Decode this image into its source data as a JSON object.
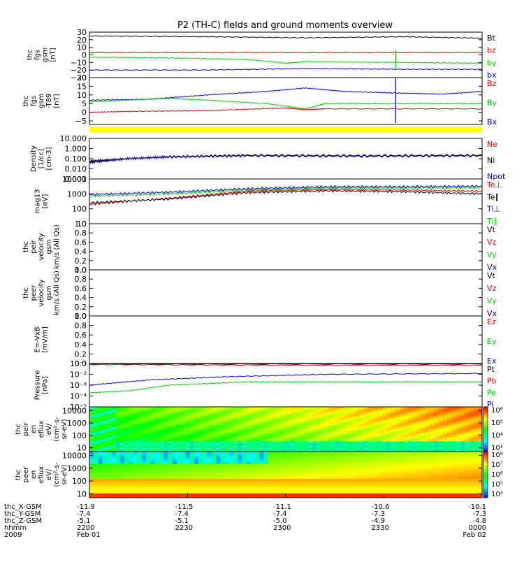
{
  "title": "P2 (TH-C) fields and ground moments overview",
  "chart_data": {
    "type": "line",
    "title": "P2 (TH-C) fields and ground moments overview",
    "xlim": [
      "2009-02-01 22:00",
      "2009-02-02 00:00"
    ],
    "x_ticks": [
      {
        "time": "2200",
        "xgsm": "-11.9",
        "ygsm": "-7.4",
        "zgsm": "-5.1",
        "date": "Feb 01"
      },
      {
        "time": "2230",
        "xgsm": "-11.5",
        "ygsm": "-7.4",
        "zgsm": "-5.1",
        "date": ""
      },
      {
        "time": "2300",
        "xgsm": "-11.1",
        "ygsm": "-7.4",
        "zgsm": "-5.0",
        "date": ""
      },
      {
        "time": "2330",
        "xgsm": "-10.6",
        "ygsm": "-7.3",
        "zgsm": "-4.9",
        "date": ""
      },
      {
        "time": "0000",
        "xgsm": "-10.1",
        "ygsm": "-7.3",
        "zgsm": "-4.8",
        "date": "Feb 02"
      }
    ],
    "row_labels": [
      "thc_X-GSM",
      "thc_Y-GSM",
      "thc_Z-GSM",
      "hhmm",
      "2009"
    ],
    "panels": [
      {
        "key": "fgs",
        "ylabel": [
          "thc",
          "fgs",
          "gsm",
          "[nT]"
        ],
        "ylim": [
          -30,
          30
        ],
        "ticks": [
          "30",
          "20",
          "10",
          "0",
          "−10",
          "−20",
          "−30"
        ],
        "tick_values": [
          30,
          20,
          10,
          0,
          -10,
          -20,
          -30
        ],
        "legend": [
          {
            "label": "Bt",
            "color": "#000000"
          },
          {
            "label": "bz",
            "color": "#dd0000"
          },
          {
            "label": "by",
            "color": "#00cc00"
          },
          {
            "label": "bx",
            "color": "#0000cc"
          }
        ],
        "series": [
          {
            "name": "Bt",
            "color": "#000000",
            "kind": "line",
            "values": [
              [
                0,
                25
              ],
              [
                0.3,
                24
              ],
              [
                0.55,
                22.5
              ],
              [
                0.8,
                24
              ],
              [
                1,
                22
              ]
            ]
          },
          {
            "name": "bz",
            "color": "#dd0000",
            "kind": "line",
            "values": [
              [
                0,
                3
              ],
              [
                0.5,
                3
              ],
              [
                1,
                3
              ]
            ]
          },
          {
            "name": "by",
            "color": "#00cc00",
            "kind": "line",
            "values": [
              [
                0,
                -3
              ],
              [
                0.2,
                -4
              ],
              [
                0.4,
                -6
              ],
              [
                0.5,
                -11
              ],
              [
                0.55,
                -9
              ],
              [
                0.8,
                -10
              ],
              [
                1,
                -11
              ]
            ]
          },
          {
            "name": "bx",
            "color": "#0000cc",
            "kind": "line",
            "values": [
              [
                0,
                -20
              ],
              [
                0.3,
                -20
              ],
              [
                0.55,
                -18
              ],
              [
                0.8,
                -19
              ],
              [
                1,
                -19
              ]
            ]
          }
        ]
      },
      {
        "key": "t89",
        "ylabel": [
          "thc",
          "fgs",
          "gsm",
          "-T89",
          "[nT]"
        ],
        "ylim": [
          -7,
          20
        ],
        "ticks": [
          "20",
          "15",
          "10",
          "5",
          "0",
          "−5"
        ],
        "tick_values": [
          20,
          15,
          10,
          5,
          0,
          -5
        ],
        "legend": [
          {
            "label": "Bz",
            "color": "#dd0000"
          },
          {
            "label": "By",
            "color": "#00cc00"
          },
          {
            "label": "Bx",
            "color": "#0000cc"
          }
        ],
        "series": [
          {
            "name": "Bx",
            "color": "#0000cc",
            "kind": "line",
            "values": [
              [
                0,
                7
              ],
              [
                0.15,
                7.5
              ],
              [
                0.3,
                10
              ],
              [
                0.45,
                12
              ],
              [
                0.55,
                14
              ],
              [
                0.65,
                12
              ],
              [
                0.8,
                11
              ],
              [
                0.9,
                10.5
              ],
              [
                1,
                12
              ]
            ]
          },
          {
            "name": "By",
            "color": "#00cc00",
            "kind": "line",
            "values": [
              [
                0,
                6
              ],
              [
                0.1,
                7
              ],
              [
                0.2,
                8
              ],
              [
                0.3,
                7
              ],
              [
                0.45,
                5
              ],
              [
                0.55,
                2
              ],
              [
                0.6,
                5
              ],
              [
                0.8,
                5
              ],
              [
                1,
                5
              ]
            ]
          },
          {
            "name": "Bz",
            "color": "#dd0000",
            "kind": "line",
            "values": [
              [
                0,
                0
              ],
              [
                0.1,
                0.5
              ],
              [
                0.3,
                1
              ],
              [
                0.5,
                2.5
              ],
              [
                0.55,
                1.5
              ],
              [
                0.6,
                2
              ],
              [
                1,
                2
              ]
            ]
          }
        ]
      },
      {
        "key": "density",
        "ylabel": [
          "Density",
          "[1/cc]",
          "[cm-3]"
        ],
        "log": true,
        "ylim": [
          0.001,
          10
        ],
        "ticks": [
          "10.000",
          "1.000",
          "0.100",
          "0.010",
          "0.001"
        ],
        "tick_values": [
          10,
          1,
          0.1,
          0.01,
          0.001
        ],
        "legend": [
          {
            "label": "Ne",
            "color": "#dd0000"
          },
          {
            "label": "Ni",
            "color": "#000000"
          },
          {
            "label": "Npot",
            "color": "#0000cc"
          }
        ],
        "series": [
          {
            "name": "Ne",
            "color": "#dd0000",
            "kind": "line",
            "values": [
              [
                0,
                0.05
              ],
              [
                0.1,
                0.1
              ],
              [
                0.2,
                0.15
              ],
              [
                0.4,
                0.2
              ],
              [
                0.7,
                0.18
              ],
              [
                1,
                0.2
              ]
            ]
          },
          {
            "name": "Ni",
            "color": "#000000",
            "kind": "line",
            "values": [
              [
                0,
                0.06
              ],
              [
                0.1,
                0.1
              ],
              [
                0.2,
                0.16
              ],
              [
                0.4,
                0.22
              ],
              [
                0.7,
                0.2
              ],
              [
                1,
                0.22
              ]
            ]
          },
          {
            "name": "Npot",
            "color": "#0000cc",
            "kind": "line",
            "values": [
              [
                0,
                0.04
              ],
              [
                0.1,
                0.1
              ],
              [
                0.2,
                0.14
              ],
              [
                0.4,
                0.19
              ],
              [
                0.7,
                0.17
              ],
              [
                1,
                0.19
              ]
            ]
          }
        ]
      },
      {
        "key": "mag13",
        "ylabel": [
          "mag13",
          "[eV]"
        ],
        "log": true,
        "ylim": [
          10,
          10000
        ],
        "ticks": [
          "10000",
          "1000",
          "100",
          "10"
        ],
        "tick_values": [
          10000,
          1000,
          100,
          10
        ],
        "legend": [
          {
            "label": "Te⊥",
            "color": "#dd0000"
          },
          {
            "label": "Te∥",
            "color": "#000000"
          },
          {
            "label": "Ti⊥",
            "color": "#0000cc"
          },
          {
            "label": "Ti∥",
            "color": "#00cc00"
          }
        ],
        "series": [
          {
            "name": "Ti⊥",
            "color": "#0000cc",
            "kind": "line",
            "values": [
              [
                0,
                900
              ],
              [
                0.2,
                1300
              ],
              [
                0.4,
                2200
              ],
              [
                0.6,
                3000
              ],
              [
                0.8,
                3000
              ],
              [
                1,
                3300
              ]
            ]
          },
          {
            "name": "Ti∥",
            "color": "#00cc00",
            "kind": "line",
            "values": [
              [
                0,
                700
              ],
              [
                0.2,
                1000
              ],
              [
                0.4,
                1800
              ],
              [
                0.6,
                2500
              ],
              [
                0.8,
                2500
              ],
              [
                1,
                2600
              ]
            ]
          },
          {
            "name": "Te⊥",
            "color": "#dd0000",
            "kind": "line",
            "values": [
              [
                0,
                200
              ],
              [
                0.2,
                500
              ],
              [
                0.4,
                1500
              ],
              [
                0.6,
                2000
              ],
              [
                0.8,
                1800
              ],
              [
                1,
                1500
              ]
            ]
          },
          {
            "name": "Te∥",
            "color": "#000000",
            "kind": "line",
            "values": [
              [
                0,
                250
              ],
              [
                0.2,
                450
              ],
              [
                0.4,
                1200
              ],
              [
                0.6,
                1600
              ],
              [
                0.8,
                1400
              ],
              [
                1,
                1000
              ]
            ]
          }
        ]
      },
      {
        "key": "peir",
        "ylabel": [
          "thc",
          "peir",
          "velocity",
          "gsm",
          "km/s (All Qs)"
        ],
        "ylim": [
          0,
          1
        ],
        "ticks": [
          "1.0",
          "0.8",
          "0.6",
          "0.4",
          "0.2",
          "0.0"
        ],
        "tick_values": [
          1,
          0.8,
          0.6,
          0.4,
          0.2,
          0
        ],
        "legend": [
          {
            "label": "Vt",
            "color": "#000000"
          },
          {
            "label": "Vz",
            "color": "#dd0000"
          },
          {
            "label": "Vy",
            "color": "#00cc00"
          },
          {
            "label": "Vx",
            "color": "#0000cc"
          }
        ],
        "series": []
      },
      {
        "key": "peer",
        "ylabel": [
          "thc",
          "peer",
          "velocity",
          "gsm",
          "km/s (All Qs)"
        ],
        "ylim": [
          0,
          1
        ],
        "ticks": [
          "1.0",
          "0.8",
          "0.6",
          "0.4",
          "0.2",
          "0.0"
        ],
        "tick_values": [
          1,
          0.8,
          0.6,
          0.4,
          0.2,
          0
        ],
        "legend": [
          {
            "label": "Vt",
            "color": "#000000"
          },
          {
            "label": "Vz",
            "color": "#dd0000"
          },
          {
            "label": "Vy",
            "color": "#00cc00"
          },
          {
            "label": "Vx",
            "color": "#0000cc"
          }
        ],
        "series": []
      },
      {
        "key": "efield",
        "ylabel": [
          "E=-VxB",
          "[mV/m]"
        ],
        "ylim": [
          0,
          1
        ],
        "ticks": [
          "1.0",
          "0.8",
          "0.6",
          "0.4",
          "0.2",
          "0.0"
        ],
        "tick_values": [
          1,
          0.8,
          0.6,
          0.4,
          0.2,
          0
        ],
        "legend": [
          {
            "label": "Ez",
            "color": "#dd0000"
          },
          {
            "label": "Ey",
            "color": "#00cc00"
          },
          {
            "label": "Ex",
            "color": "#0000cc"
          }
        ],
        "series": []
      },
      {
        "key": "pressure",
        "ylabel": [
          "Pressure",
          "[nPa]"
        ],
        "log": true,
        "ylim": [
          1e-05,
          0.1
        ],
        "ticks": [
          "10⁻¹",
          "10⁻²",
          "10⁻³",
          "10⁻⁴",
          "10⁻⁵"
        ],
        "tick_values": [
          0.1,
          0.01,
          0.001,
          0.0001,
          1e-05
        ],
        "legend": [
          {
            "label": "Pt",
            "color": "#000000"
          },
          {
            "label": "Pb",
            "color": "#dd0000"
          },
          {
            "label": "Pe",
            "color": "#00cc00"
          },
          {
            "label": "Pi",
            "color": "#0000cc"
          }
        ],
        "series": [
          {
            "name": "Pt",
            "color": "#000000",
            "kind": "line",
            "values": [
              [
                0,
                0.09
              ],
              [
                1,
                0.09
              ]
            ]
          },
          {
            "name": "Pb",
            "color": "#dd0000",
            "kind": "line",
            "values": [
              [
                0,
                0.08
              ],
              [
                0.5,
                0.07
              ],
              [
                1,
                0.07
              ]
            ]
          },
          {
            "name": "Pi",
            "color": "#0000cc",
            "kind": "line",
            "values": [
              [
                0,
                0.001
              ],
              [
                0.15,
                0.003
              ],
              [
                0.35,
                0.006
              ],
              [
                0.6,
                0.01
              ],
              [
                1,
                0.012
              ]
            ]
          },
          {
            "name": "Pe",
            "color": "#00cc00",
            "kind": "line",
            "values": [
              [
                0,
                0.0002
              ],
              [
                0.1,
                0.0003
              ],
              [
                0.2,
                0.001
              ],
              [
                0.4,
                0.002
              ],
              [
                0.6,
                0.002
              ],
              [
                1,
                0.002
              ]
            ]
          }
        ]
      },
      {
        "key": "peir_spec",
        "ylabel": [
          "thc",
          "peir",
          "en",
          "eflux",
          "eV/",
          "(cm²-s-",
          "sr-eV)"
        ],
        "log": true,
        "ylim": [
          5,
          20000
        ],
        "ticks": [
          "10000",
          "1000",
          "100",
          "10"
        ],
        "tick_values": [
          10000,
          1000,
          100,
          10
        ],
        "colorbar": {
          "labels": [
            "10⁶",
            "10⁵",
            "10⁴",
            "10³"
          ]
        },
        "series": [
          {
            "name": "peir spectrogram",
            "kind": "spectrogram"
          }
        ]
      },
      {
        "key": "peer_spec",
        "ylabel": [
          "thc",
          "peer",
          "en",
          "eflux",
          "eV/",
          "(cm²-s-",
          "sr-eV)"
        ],
        "log": true,
        "ylim": [
          5,
          20000
        ],
        "ticks": [
          "10000",
          "1000",
          "100",
          "10"
        ],
        "tick_values": [
          10000,
          1000,
          100,
          10
        ],
        "colorbar": {
          "labels": [
            "10⁸",
            "10⁷",
            "10⁶",
            "10⁵",
            "10⁴"
          ]
        },
        "series": [
          {
            "name": "peer spectrogram",
            "kind": "spectrogram"
          }
        ]
      }
    ]
  }
}
